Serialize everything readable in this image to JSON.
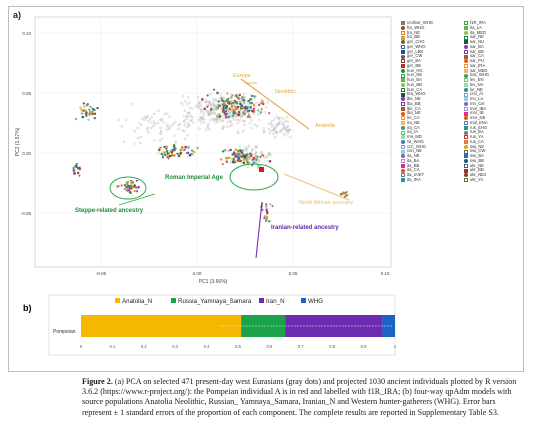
{
  "panel_a": {
    "label": "a)",
    "xlabel": "PC1 (3.66%)",
    "ylabel": "PC2 (1.57%)",
    "x_ticks": [
      "-0.05",
      "0.00",
      "0.05",
      "0.10"
    ],
    "y_ticks": [
      "0.10",
      "0.05",
      "0.00",
      "-0.05"
    ],
    "annotations": {
      "europe": "Europe",
      "neolithic": "Neolithic",
      "anatolia": "Anatolia",
      "roman": "Roman Imperial Age",
      "north_africa": "North African ancestry",
      "steppe": "Steppe-related ancestry",
      "iranian": "Iranian-related ancestry"
    },
    "legend_col1": [
      "cro/kwr_WHG",
      "fra_WHG",
      "fra_NE",
      "fra_BB",
      "ger_CHG",
      "ger_WHG",
      "ger_LBK",
      "ger_CW",
      "ger_BA",
      "ger_BB",
      "hun_HG",
      "hun_NE",
      "hun_BA",
      "hun_BB",
      "hun_CA",
      "bra_WHG",
      "lbe_NE",
      "lba_BB",
      "lbe_CA",
      "lba_NE",
      "lre_CA",
      "ira_NE",
      "ira_CA",
      "ira_IA",
      "rnn_MD",
      "vit_WHG",
      "crC_WHG",
      "con_NE",
      "ita_NE",
      "ita_BA",
      "ita_BB",
      "ita_CA",
      "ita_IA/ET",
      "ita_IRA"
    ],
    "legend_col2": [
      "f1R_IRA",
      "ita_LA",
      "ita_MED",
      "sar_NE",
      "sar_NU",
      "sar_BA",
      "sar_BB",
      "sar_CA",
      "sar_PU",
      "sar_IRA",
      "sar_MED",
      "kos_WHG",
      "lev_EN",
      "lev_NA",
      "lur_NE",
      "crel_Ar",
      "mn_La",
      "mn_Cel",
      "mor_IBA",
      "mor_IB",
      "mor_NE",
      "mal_ENA",
      "rus_EHG",
      "rus_BA",
      "rus_YA",
      "rus_CA",
      "swi_NE",
      "swi_CW",
      "swi_BA",
      "swi_BB",
      "ukr_NE",
      "ukr_BB",
      "ukr_NE2",
      "ukr_YA"
    ],
    "legend_colors": [
      "#7b7b7b",
      "#c0392b",
      "#e07b39",
      "#d6a21e",
      "#7a5c2e",
      "#2f6db5",
      "#1f4f8c",
      "#5a5a5a",
      "#8b3a3a",
      "#a9332b",
      "#2b8c3e",
      "#3fa34d",
      "#69b34c",
      "#8cc63f",
      "#1e7b58",
      "#0f5e3c",
      "#9b2fae",
      "#6a3d9a",
      "#b15928",
      "#e6550d",
      "#fd8d3c",
      "#fdae6b",
      "#31a354",
      "#74c476",
      "#a1d99b",
      "#3182bd",
      "#6baed6",
      "#9ecae1",
      "#756bb1",
      "#9e9ac8",
      "#e7298a",
      "#d95f02",
      "#7570b3",
      "#1b9e77"
    ]
  },
  "panel_b": {
    "label": "b)",
    "row_label": "Pompeian",
    "legend": [
      "Anatolia_N",
      "Russia_Yamnaya_Samara",
      "Iran_N",
      "WHG"
    ],
    "x_ticks": [
      "0",
      "0.1",
      "0.2",
      "0.3",
      "0.4",
      "0.5",
      "0.6",
      "0.7",
      "0.8",
      "0.9",
      "1"
    ]
  },
  "chart_data": [
    {
      "type": "scatter",
      "xlabel": "PC1 (3.66%)",
      "ylabel": "PC2 (1.57%)",
      "xlim": [
        -0.09,
        0.16
      ],
      "ylim": [
        -0.08,
        0.11
      ],
      "series": [
        {
          "name": "Pompeian",
          "x": [
            0.043
          ],
          "y": [
            -0.004
          ]
        }
      ]
    },
    {
      "type": "bar",
      "categories": [
        "Pompeian"
      ],
      "series": [
        {
          "name": "Anatolia_N",
          "values": [
            0.51
          ],
          "color": "#f5b800"
        },
        {
          "name": "Russia_Yamnaya_Samara",
          "values": [
            0.14
          ],
          "color": "#1aa34a"
        },
        {
          "name": "Iran_N",
          "values": [
            0.31
          ],
          "color": "#6d2bb0"
        },
        {
          "name": "WHG",
          "values": [
            0.04
          ],
          "color": "#1b63c6"
        }
      ],
      "xlim": [
        0,
        1
      ],
      "stacked": true,
      "orientation": "horizontal"
    }
  ],
  "caption": {
    "fig_label": "Figure 2.",
    "text": " (a) PCA on selected 471 present-day west Eurasians (gray dots) and projected 1030 ancient individuals plotted by R version 3.6.2 (https://www.r-project.org/): the Pompeian individual A is in red and labelled with f1R_IRA; (b) four-way qpAdm models with source populations Anatolia Neolithic, Russian_ Yamnaya_Samara, Iranian_N and Western hunter-gatherers (WHG). Error bars represent ± 1 standard errors of the proportion of each component. The complete results are reported in Supplementary Table S3."
  }
}
